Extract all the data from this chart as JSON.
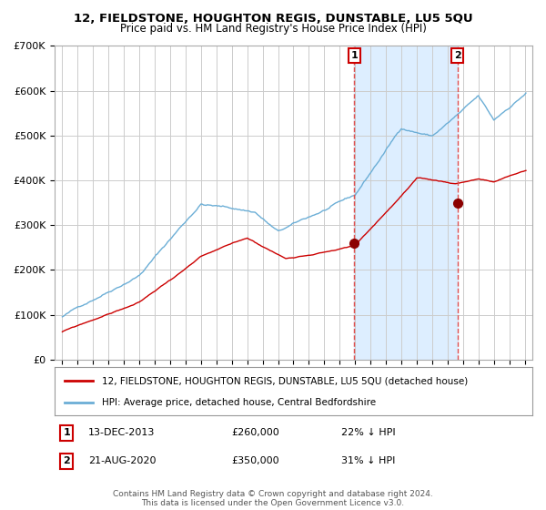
{
  "title1": "12, FIELDSTONE, HOUGHTON REGIS, DUNSTABLE, LU5 5QU",
  "title2": "Price paid vs. HM Land Registry's House Price Index (HPI)",
  "legend_line1": "12, FIELDSTONE, HOUGHTON REGIS, DUNSTABLE, LU5 5QU (detached house)",
  "legend_line2": "HPI: Average price, detached house, Central Bedfordshire",
  "annotation1_label": "1",
  "annotation1_date": "13-DEC-2013",
  "annotation1_price": "£260,000",
  "annotation1_hpi": "22% ↓ HPI",
  "annotation1_year": 2013.95,
  "annotation1_value": 260000,
  "annotation2_label": "2",
  "annotation2_date": "21-AUG-2020",
  "annotation2_price": "£350,000",
  "annotation2_hpi": "31% ↓ HPI",
  "annotation2_year": 2020.64,
  "annotation2_value": 350000,
  "footer": "Contains HM Land Registry data © Crown copyright and database right 2024.\nThis data is licensed under the Open Government Licence v3.0.",
  "hpi_color": "#6baed6",
  "price_color": "#cc0000",
  "marker_color": "#8b0000",
  "shading_color": "#ddeeff",
  "dashed_color": "#e05050",
  "grid_color": "#cccccc",
  "bg_color": "#ffffff",
  "ylim": [
    0,
    700000
  ],
  "xlim_start": 1994.5,
  "xlim_end": 2025.5
}
